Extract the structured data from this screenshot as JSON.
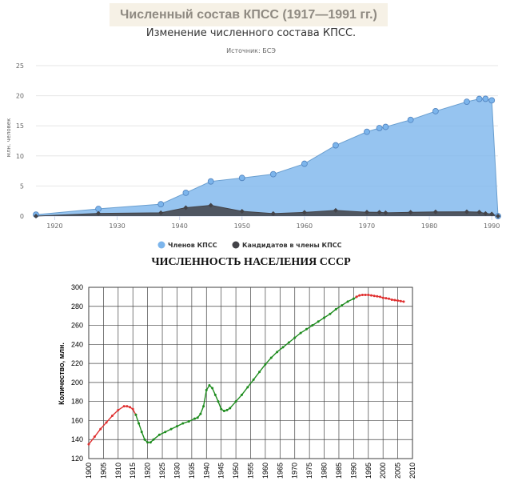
{
  "page": {
    "banner_title": "Численный состав КПСС (1917—1991 гг.)"
  },
  "chart_data": [
    {
      "type": "area",
      "title": "Изменение численного состава КПСС.",
      "subtitle": "Источник: БСЭ",
      "xlabel": "",
      "ylabel": "млн. человек",
      "xlim": [
        1917,
        1991
      ],
      "ylim": [
        0,
        25
      ],
      "x_ticks": [
        1920,
        1930,
        1940,
        1950,
        1960,
        1970,
        1980,
        1990
      ],
      "y_ticks": [
        0,
        5,
        10,
        15,
        20,
        25
      ],
      "legend_position": "bottom-center",
      "series": [
        {
          "name": "Членов КПСС",
          "color": "#7cb5ec",
          "x": [
            1917,
            1927,
            1937,
            1941,
            1945,
            1950,
            1955,
            1960,
            1965,
            1970,
            1972,
            1973,
            1977,
            1981,
            1986,
            1988,
            1989,
            1990,
            1991
          ],
          "values": [
            0.24,
            1.2,
            1.98,
            3.87,
            5.76,
            6.34,
            6.96,
            8.7,
            11.76,
            14.01,
            14.63,
            14.82,
            15.99,
            17.43,
            19.0,
            19.47,
            19.49,
            19.23,
            0
          ]
        },
        {
          "name": "Кандидатов в члены КПСС",
          "color": "#434348",
          "x": [
            1917,
            1927,
            1937,
            1941,
            1945,
            1950,
            1955,
            1960,
            1965,
            1970,
            1972,
            1973,
            1977,
            1981,
            1986,
            1988,
            1989,
            1990,
            1991
          ],
          "values": [
            0,
            0.45,
            0.55,
            1.4,
            1.79,
            0.8,
            0.42,
            0.62,
            0.95,
            0.64,
            0.63,
            0.55,
            0.63,
            0.69,
            0.72,
            0.67,
            0.43,
            0.35,
            0
          ]
        }
      ]
    },
    {
      "type": "line",
      "title": "ЧИСЛЕННОСТЬ НАСЕЛЕНИЯ СССР",
      "xlabel": "",
      "ylabel": "Количество, млн.",
      "xlim": [
        1900,
        2010
      ],
      "ylim": [
        120,
        300
      ],
      "x_ticks": [
        1900,
        1905,
        1910,
        1915,
        1920,
        1925,
        1930,
        1935,
        1940,
        1945,
        1950,
        1955,
        1960,
        1965,
        1970,
        1975,
        1980,
        1985,
        1990,
        1995,
        2000,
        2005,
        2010
      ],
      "y_ticks": [
        120,
        140,
        160,
        180,
        200,
        220,
        240,
        260,
        280,
        300
      ],
      "grid": true,
      "series": [
        {
          "color": "#e03030",
          "x": [
            1900,
            1902,
            1904,
            1906,
            1908,
            1910,
            1912,
            1913,
            1914,
            1915,
            1916
          ],
          "values": [
            135,
            143,
            151,
            158,
            165,
            171,
            175,
            175,
            174,
            172,
            166
          ]
        },
        {
          "color": "#1e8c1e",
          "x": [
            1916,
            1917,
            1918,
            1919,
            1920,
            1921,
            1922,
            1924,
            1926,
            1928,
            1930,
            1932,
            1934,
            1936,
            1937,
            1938,
            1939,
            1940,
            1941,
            1942,
            1943,
            1944,
            1945,
            1946,
            1947,
            1948,
            1950,
            1952,
            1954,
            1956,
            1958,
            1960,
            1962,
            1964,
            1966,
            1968,
            1970,
            1972,
            1974,
            1976,
            1978,
            1980,
            1982,
            1984,
            1986,
            1988,
            1990,
            1991
          ],
          "values": [
            166,
            157,
            148,
            140,
            137,
            137,
            140,
            145,
            148,
            151,
            154,
            157,
            159,
            162,
            163,
            167,
            175,
            192,
            197,
            194,
            187,
            180,
            172,
            170,
            171,
            173,
            180,
            187,
            195,
            203,
            211,
            219,
            226,
            232,
            237,
            242,
            247,
            252,
            256,
            260,
            264,
            268,
            272,
            277,
            281,
            285,
            288,
            290
          ]
        },
        {
          "color": "#e03030",
          "x": [
            1991,
            1992,
            1993,
            1994,
            1995,
            1996,
            1997,
            1998,
            1999,
            2000,
            2001,
            2002,
            2003,
            2004,
            2005,
            2006,
            2007
          ],
          "values": [
            290,
            291.5,
            292,
            292,
            292,
            291.5,
            291,
            290.5,
            290,
            289,
            288.5,
            288,
            287,
            286.5,
            286,
            285.5,
            285
          ]
        }
      ]
    }
  ]
}
